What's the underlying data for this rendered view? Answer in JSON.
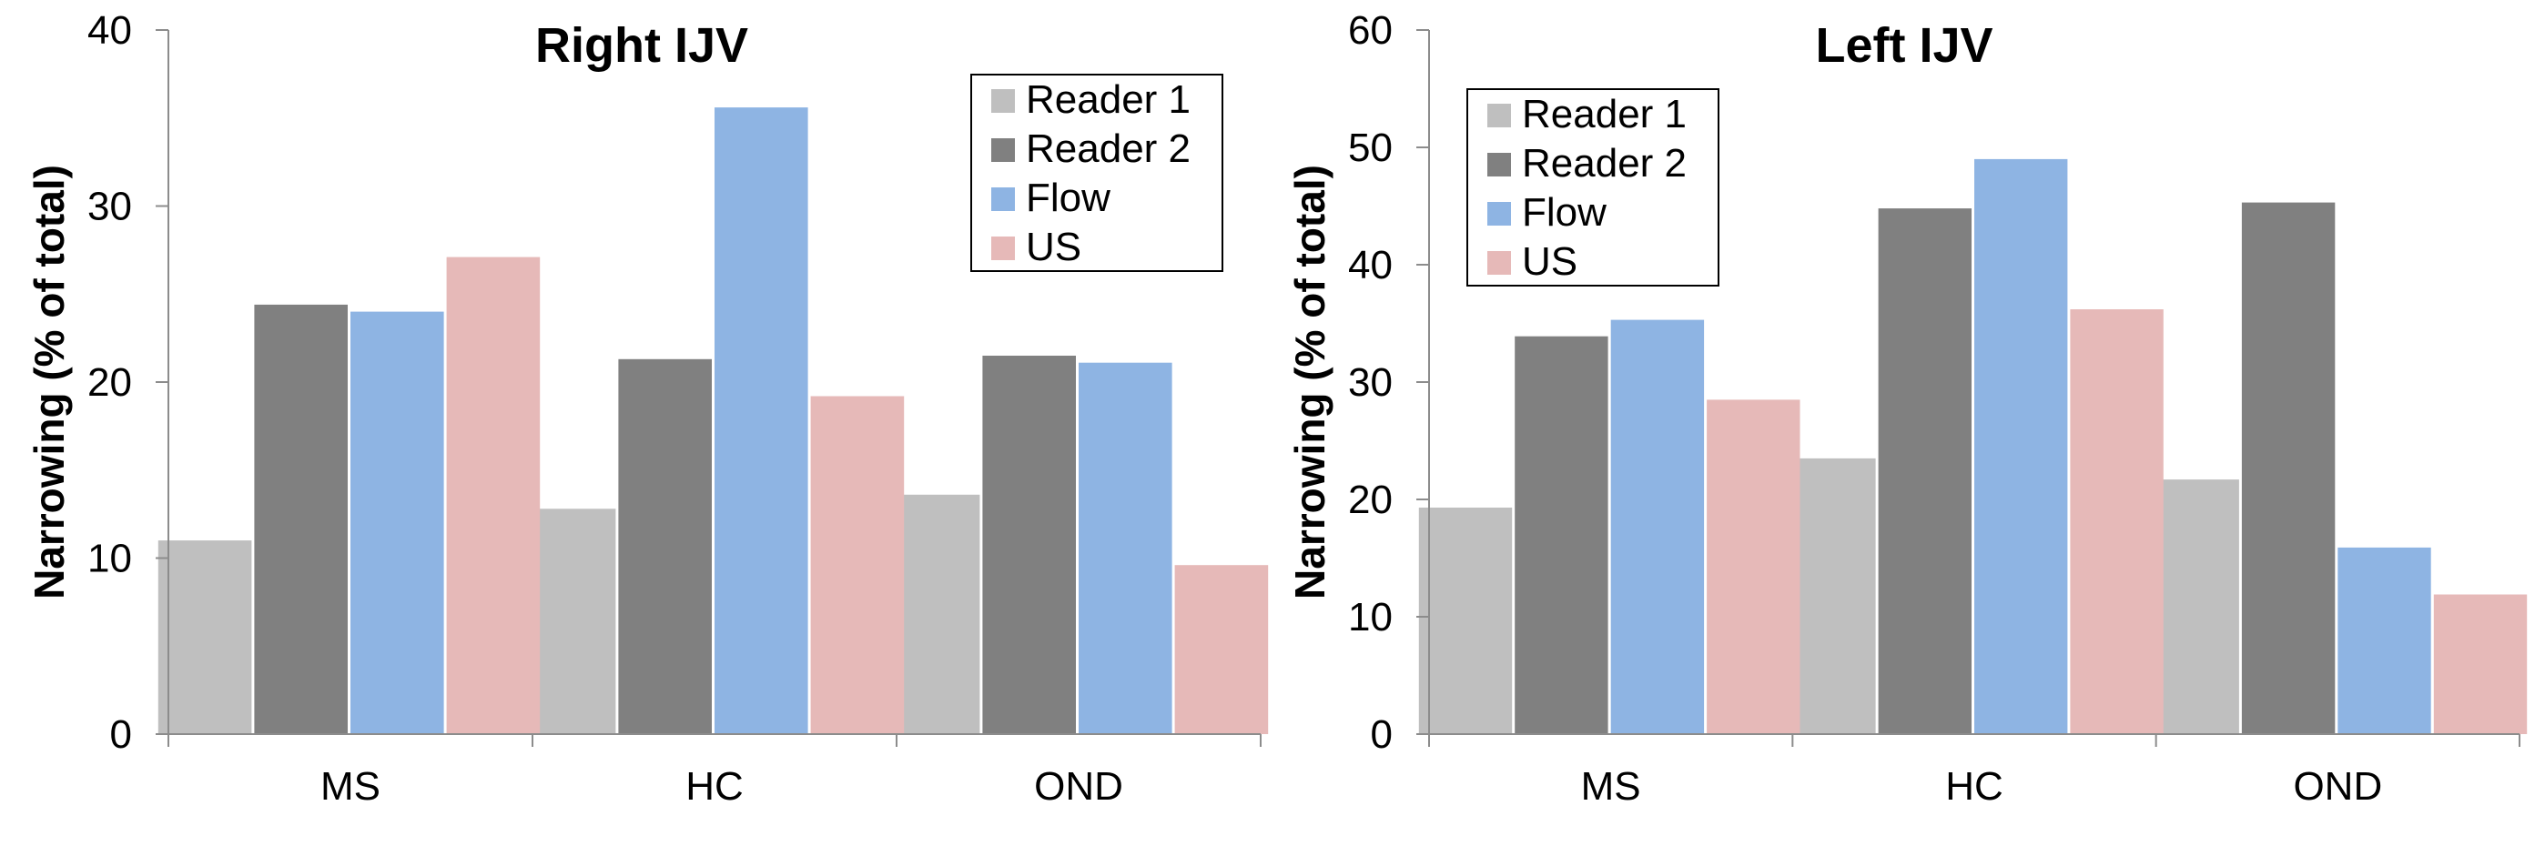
{
  "chart_data": [
    {
      "type": "bar",
      "title": "Right IJV",
      "ylabel": "Narrowing (% of total)",
      "xlabel": "",
      "categories": [
        "MS",
        "HC",
        "OND"
      ],
      "ylim": [
        0,
        40
      ],
      "yticks": [
        0,
        10,
        20,
        30,
        40
      ],
      "grid": false,
      "legend_position": "top-right",
      "series": [
        {
          "name": "Reader 1",
          "color": "#bfbfbf",
          "values": [
            11.0,
            12.8,
            13.6
          ]
        },
        {
          "name": "Reader 2",
          "color": "#808080",
          "values": [
            24.4,
            21.3,
            21.5
          ]
        },
        {
          "name": "Flow",
          "color": "#8eb4e3",
          "values": [
            24.0,
            35.6,
            21.1
          ]
        },
        {
          "name": "US",
          "color": "#e6b9b8",
          "values": [
            27.1,
            19.2,
            9.6
          ]
        }
      ]
    },
    {
      "type": "bar",
      "title": "Left IJV",
      "ylabel": "Narrowing (% of total)",
      "xlabel": "",
      "categories": [
        "MS",
        "HC",
        "OND"
      ],
      "ylim": [
        0,
        60
      ],
      "yticks": [
        0,
        10,
        20,
        30,
        40,
        50,
        60
      ],
      "grid": false,
      "legend_position": "top-left",
      "series": [
        {
          "name": "Reader 1",
          "color": "#bfbfbf",
          "values": [
            19.3,
            23.5,
            21.7
          ]
        },
        {
          "name": "Reader 2",
          "color": "#808080",
          "values": [
            33.9,
            44.8,
            45.3
          ]
        },
        {
          "name": "Flow",
          "color": "#8eb4e3",
          "values": [
            35.3,
            49.0,
            15.9
          ]
        },
        {
          "name": "US",
          "color": "#e6b9b8",
          "values": [
            28.5,
            36.2,
            11.9
          ]
        }
      ]
    }
  ]
}
